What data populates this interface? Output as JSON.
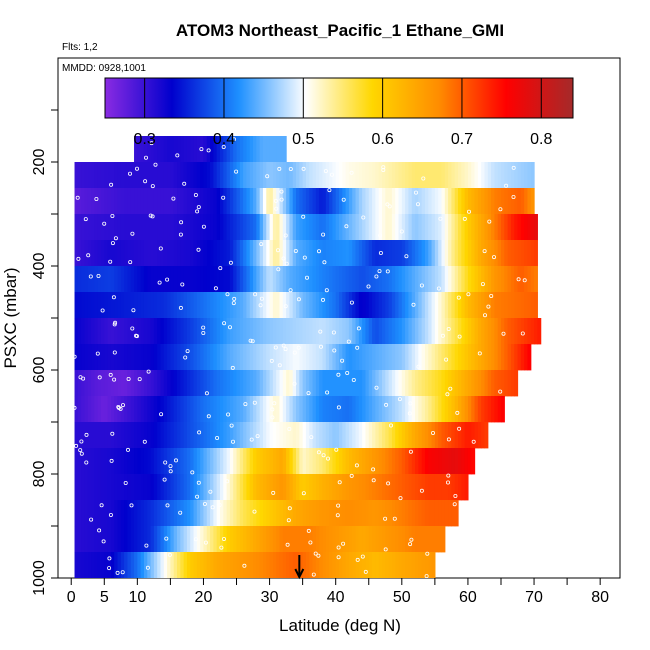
{
  "chart_data": {
    "type": "heatmap",
    "title": "ATOM3 Northeast_Pacific_1 Ethane_GMI",
    "subtitle_flights": "Flts: 1,2",
    "subtitle_dates": "MMDD: 0928,1001",
    "xlabel": "Latitude (deg N)",
    "ylabel": "PSXC (mbar)",
    "xlim": [
      -2,
      83
    ],
    "ylim": [
      1000,
      0
    ],
    "x_ticks": [
      0,
      5,
      10,
      20,
      30,
      40,
      50,
      60,
      70,
      80
    ],
    "x_tick_labels": [
      "0",
      "5",
      "10",
      "20",
      "30",
      "40",
      "50",
      "60",
      "70",
      "80"
    ],
    "y_ticks": [
      200,
      400,
      600,
      800,
      1000
    ],
    "y_tick_labels": [
      "200",
      "400",
      "600",
      "800",
      "1000"
    ],
    "colorbar": {
      "range": [
        0.25,
        0.84
      ],
      "ticks": [
        0.3,
        0.4,
        0.5,
        0.6,
        0.7,
        0.8
      ],
      "tick_labels": [
        "0.3",
        "0.4",
        "0.5",
        "0.6",
        "0.7",
        "0.8"
      ],
      "colors": [
        "#8a2be2",
        "#0000cd",
        "#1e90ff",
        "#ffffff",
        "#ffd700",
        "#ff8c00",
        "#ff0000",
        "#a52a2a"
      ]
    },
    "arrow_latitude": 34.5,
    "rows": [
      {
        "p": 175,
        "lat_min": 9.5,
        "lat_max": 32.5,
        "pts": [
          [
            9.5,
            0.3
          ],
          [
            15,
            0.32
          ],
          [
            20,
            0.31
          ],
          [
            25,
            0.4
          ],
          [
            29,
            0.44
          ],
          [
            32.5,
            0.44
          ]
        ]
      },
      {
        "p": 225,
        "lat_min": 0.5,
        "lat_max": 70,
        "pts": [
          [
            0.5,
            0.3
          ],
          [
            8,
            0.31
          ],
          [
            15,
            0.31
          ],
          [
            21,
            0.34
          ],
          [
            26,
            0.43
          ],
          [
            30,
            0.46
          ],
          [
            33,
            0.45
          ],
          [
            36,
            0.48
          ],
          [
            42,
            0.51
          ],
          [
            46,
            0.52
          ],
          [
            52,
            0.55
          ],
          [
            56,
            0.55
          ],
          [
            60,
            0.52
          ],
          [
            64,
            0.48
          ],
          [
            70,
            0.46
          ]
        ]
      },
      {
        "p": 275,
        "lat_min": 0.5,
        "lat_max": 70,
        "pts": [
          [
            0.5,
            0.28
          ],
          [
            8,
            0.3
          ],
          [
            15,
            0.3
          ],
          [
            22,
            0.33
          ],
          [
            28,
            0.44
          ],
          [
            30,
            0.54
          ],
          [
            34,
            0.4
          ],
          [
            38,
            0.35
          ],
          [
            44,
            0.47
          ],
          [
            48,
            0.52
          ],
          [
            52,
            0.47
          ],
          [
            56,
            0.5
          ],
          [
            60,
            0.62
          ],
          [
            64,
            0.68
          ],
          [
            68,
            0.7
          ],
          [
            70,
            0.66
          ]
        ]
      },
      {
        "p": 325,
        "lat_min": 0.5,
        "lat_max": 70.5,
        "pts": [
          [
            0.5,
            0.3
          ],
          [
            8,
            0.31
          ],
          [
            15,
            0.31
          ],
          [
            22,
            0.33
          ],
          [
            28,
            0.4
          ],
          [
            31,
            0.54
          ],
          [
            34,
            0.43
          ],
          [
            38,
            0.4
          ],
          [
            44,
            0.47
          ],
          [
            48,
            0.52
          ],
          [
            52,
            0.46
          ],
          [
            56,
            0.49
          ],
          [
            60,
            0.6
          ],
          [
            64,
            0.68
          ],
          [
            67,
            0.74
          ],
          [
            70.5,
            0.78
          ]
        ]
      },
      {
        "p": 375,
        "lat_min": 0.5,
        "lat_max": 70.5,
        "pts": [
          [
            0.5,
            0.3
          ],
          [
            6,
            0.32
          ],
          [
            12,
            0.31
          ],
          [
            18,
            0.32
          ],
          [
            24,
            0.35
          ],
          [
            28,
            0.45
          ],
          [
            31,
            0.54
          ],
          [
            34,
            0.44
          ],
          [
            38,
            0.41
          ],
          [
            42,
            0.42
          ],
          [
            46,
            0.36
          ],
          [
            50,
            0.37
          ],
          [
            54,
            0.43
          ],
          [
            58,
            0.55
          ],
          [
            62,
            0.64
          ],
          [
            66,
            0.7
          ],
          [
            70.5,
            0.72
          ]
        ]
      },
      {
        "p": 425,
        "lat_min": 0.5,
        "lat_max": 70.5,
        "pts": [
          [
            0.5,
            0.36
          ],
          [
            6,
            0.37
          ],
          [
            12,
            0.33
          ],
          [
            18,
            0.33
          ],
          [
            24,
            0.34
          ],
          [
            30,
            0.48
          ],
          [
            33,
            0.44
          ],
          [
            38,
            0.41
          ],
          [
            44,
            0.38
          ],
          [
            48,
            0.4
          ],
          [
            52,
            0.44
          ],
          [
            56,
            0.48
          ],
          [
            60,
            0.58
          ],
          [
            64,
            0.66
          ],
          [
            68,
            0.7
          ],
          [
            70.5,
            0.68
          ]
        ]
      },
      {
        "p": 475,
        "lat_min": 0.5,
        "lat_max": 70.5,
        "pts": [
          [
            0.5,
            0.34
          ],
          [
            8,
            0.35
          ],
          [
            14,
            0.36
          ],
          [
            20,
            0.4
          ],
          [
            26,
            0.44
          ],
          [
            31,
            0.52
          ],
          [
            35,
            0.45
          ],
          [
            40,
            0.4
          ],
          [
            44,
            0.33
          ],
          [
            48,
            0.37
          ],
          [
            52,
            0.44
          ],
          [
            56,
            0.52
          ],
          [
            60,
            0.62
          ],
          [
            64,
            0.68
          ],
          [
            70.5,
            0.7
          ]
        ]
      },
      {
        "p": 525,
        "lat_min": 0.5,
        "lat_max": 71,
        "pts": [
          [
            0.5,
            0.33
          ],
          [
            6,
            0.3
          ],
          [
            12,
            0.32
          ],
          [
            18,
            0.37
          ],
          [
            24,
            0.43
          ],
          [
            30,
            0.46
          ],
          [
            34,
            0.47
          ],
          [
            38,
            0.48
          ],
          [
            42,
            0.46
          ],
          [
            46,
            0.38
          ],
          [
            50,
            0.42
          ],
          [
            54,
            0.48
          ],
          [
            58,
            0.56
          ],
          [
            62,
            0.64
          ],
          [
            66,
            0.7
          ],
          [
            71,
            0.74
          ]
        ]
      },
      {
        "p": 575,
        "lat_min": 0.5,
        "lat_max": 69.5,
        "pts": [
          [
            0.5,
            0.33
          ],
          [
            6,
            0.32
          ],
          [
            12,
            0.33
          ],
          [
            18,
            0.38
          ],
          [
            24,
            0.44
          ],
          [
            30,
            0.48
          ],
          [
            34,
            0.5
          ],
          [
            38,
            0.48
          ],
          [
            42,
            0.42
          ],
          [
            46,
            0.44
          ],
          [
            50,
            0.46
          ],
          [
            54,
            0.52
          ],
          [
            58,
            0.58
          ],
          [
            62,
            0.64
          ],
          [
            66,
            0.7
          ],
          [
            69.5,
            0.76
          ]
        ]
      },
      {
        "p": 625,
        "lat_min": 0.5,
        "lat_max": 67.5,
        "pts": [
          [
            0.5,
            0.3
          ],
          [
            4,
            0.28
          ],
          [
            8,
            0.27
          ],
          [
            12,
            0.3
          ],
          [
            16,
            0.34
          ],
          [
            22,
            0.4
          ],
          [
            28,
            0.44
          ],
          [
            33,
            0.52
          ],
          [
            35,
            0.46
          ],
          [
            38,
            0.42
          ],
          [
            44,
            0.42
          ],
          [
            48,
            0.48
          ],
          [
            52,
            0.54
          ],
          [
            56,
            0.58
          ],
          [
            60,
            0.64
          ],
          [
            64,
            0.7
          ],
          [
            67.5,
            0.72
          ]
        ]
      },
      {
        "p": 675,
        "lat_min": 0.5,
        "lat_max": 65.5,
        "pts": [
          [
            0.5,
            0.3
          ],
          [
            5,
            0.27
          ],
          [
            9,
            0.3
          ],
          [
            14,
            0.34
          ],
          [
            20,
            0.4
          ],
          [
            26,
            0.44
          ],
          [
            31,
            0.52
          ],
          [
            34,
            0.46
          ],
          [
            38,
            0.41
          ],
          [
            42,
            0.4
          ],
          [
            46,
            0.44
          ],
          [
            50,
            0.48
          ],
          [
            54,
            0.54
          ],
          [
            58,
            0.62
          ],
          [
            62,
            0.72
          ],
          [
            65.5,
            0.76
          ]
        ]
      },
      {
        "p": 725,
        "lat_min": 0.5,
        "lat_max": 63,
        "pts": [
          [
            0.5,
            0.31
          ],
          [
            6,
            0.31
          ],
          [
            12,
            0.33
          ],
          [
            18,
            0.38
          ],
          [
            24,
            0.43
          ],
          [
            30,
            0.5
          ],
          [
            34,
            0.52
          ],
          [
            37,
            0.48
          ],
          [
            40,
            0.46
          ],
          [
            44,
            0.5
          ],
          [
            48,
            0.56
          ],
          [
            52,
            0.64
          ],
          [
            56,
            0.7
          ],
          [
            60,
            0.74
          ],
          [
            63,
            0.72
          ]
        ]
      },
      {
        "p": 775,
        "lat_min": 0.5,
        "lat_max": 61,
        "pts": [
          [
            0.5,
            0.31
          ],
          [
            6,
            0.32
          ],
          [
            12,
            0.34
          ],
          [
            18,
            0.4
          ],
          [
            24,
            0.5
          ],
          [
            28,
            0.6
          ],
          [
            32,
            0.64
          ],
          [
            35,
            0.52
          ],
          [
            38,
            0.55
          ],
          [
            42,
            0.62
          ],
          [
            46,
            0.66
          ],
          [
            50,
            0.7
          ],
          [
            54,
            0.76
          ],
          [
            58,
            0.78
          ],
          [
            61,
            0.75
          ]
        ]
      },
      {
        "p": 825,
        "lat_min": 0.5,
        "lat_max": 60,
        "pts": [
          [
            0.5,
            0.31
          ],
          [
            6,
            0.32
          ],
          [
            12,
            0.33
          ],
          [
            18,
            0.4
          ],
          [
            24,
            0.52
          ],
          [
            28,
            0.62
          ],
          [
            32,
            0.66
          ],
          [
            35,
            0.6
          ],
          [
            38,
            0.63
          ],
          [
            42,
            0.66
          ],
          [
            46,
            0.68
          ],
          [
            50,
            0.7
          ],
          [
            54,
            0.72
          ],
          [
            57,
            0.72
          ],
          [
            60,
            0.74
          ]
        ]
      },
      {
        "p": 875,
        "lat_min": 0.5,
        "lat_max": 58.5,
        "pts": [
          [
            0.5,
            0.31
          ],
          [
            6,
            0.32
          ],
          [
            12,
            0.36
          ],
          [
            18,
            0.42
          ],
          [
            22,
            0.5
          ],
          [
            26,
            0.56
          ],
          [
            30,
            0.6
          ],
          [
            34,
            0.64
          ],
          [
            38,
            0.66
          ],
          [
            42,
            0.67
          ],
          [
            46,
            0.66
          ],
          [
            50,
            0.68
          ],
          [
            54,
            0.7
          ],
          [
            58.5,
            0.7
          ]
        ]
      },
      {
        "p": 925,
        "lat_min": 0.5,
        "lat_max": 56.5,
        "pts": [
          [
            0.5,
            0.31
          ],
          [
            6,
            0.32
          ],
          [
            12,
            0.36
          ],
          [
            16,
            0.45
          ],
          [
            20,
            0.52
          ],
          [
            24,
            0.6
          ],
          [
            28,
            0.64
          ],
          [
            32,
            0.68
          ],
          [
            36,
            0.68
          ],
          [
            40,
            0.66
          ],
          [
            44,
            0.64
          ],
          [
            48,
            0.66
          ],
          [
            52,
            0.68
          ],
          [
            56.5,
            0.68
          ]
        ]
      },
      {
        "p": 975,
        "lat_min": 0.5,
        "lat_max": 55,
        "pts": [
          [
            0.5,
            0.32
          ],
          [
            6,
            0.33
          ],
          [
            10,
            0.4
          ],
          [
            14,
            0.5
          ],
          [
            18,
            0.6
          ],
          [
            22,
            0.64
          ],
          [
            26,
            0.66
          ],
          [
            30,
            0.68
          ],
          [
            34,
            0.7
          ],
          [
            38,
            0.67
          ],
          [
            42,
            0.64
          ],
          [
            46,
            0.62
          ],
          [
            50,
            0.64
          ],
          [
            55,
            0.66
          ]
        ]
      }
    ]
  }
}
